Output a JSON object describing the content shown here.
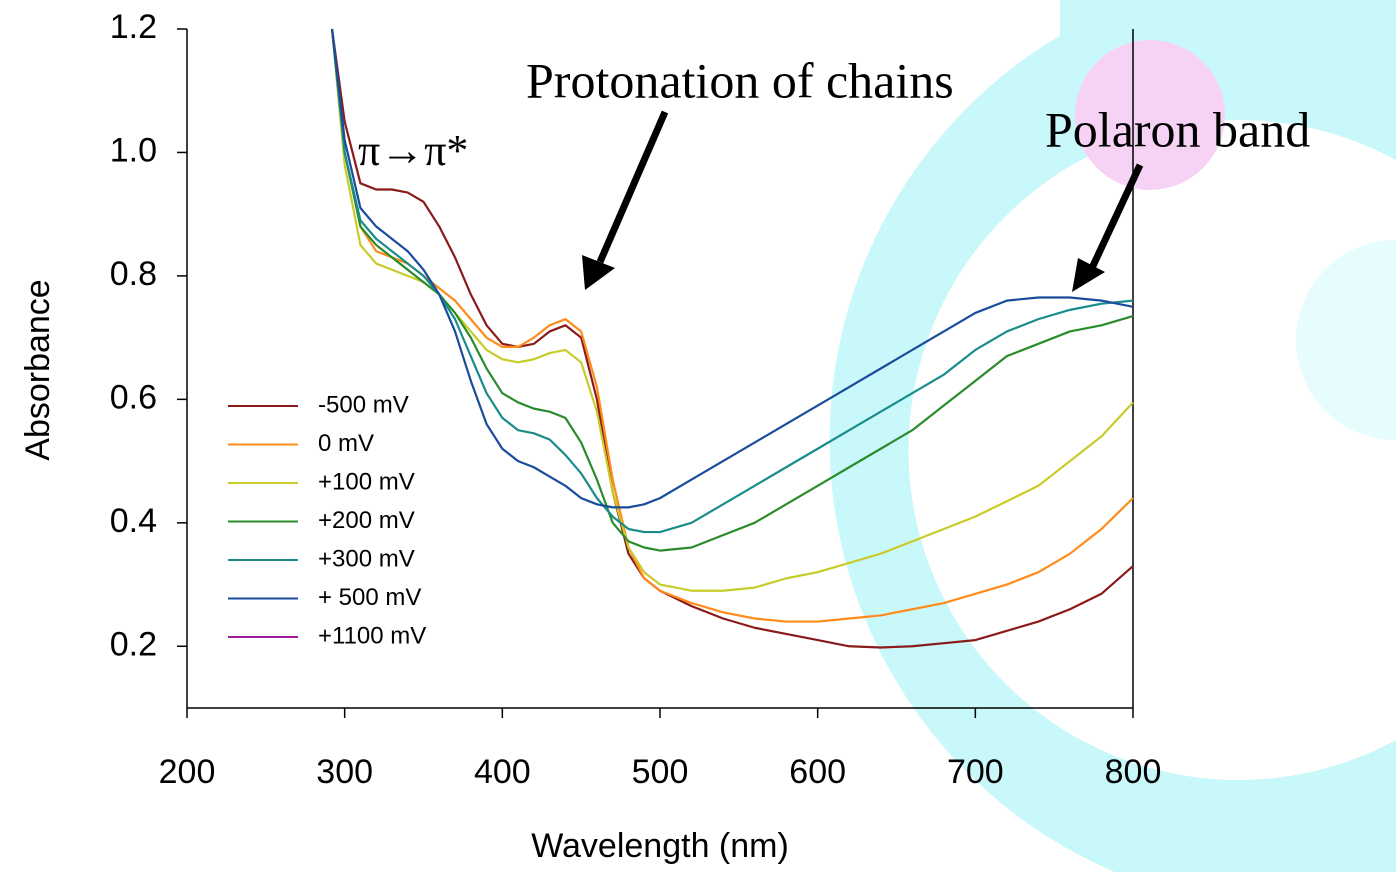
{
  "chart_data": {
    "type": "line",
    "xlabel": "Wavelength (nm)",
    "ylabel": "Absorbance",
    "annotations": [
      "π→π*",
      "Protonation of chains",
      "Polaron band"
    ],
    "x": [
      292,
      300,
      310,
      320,
      330,
      340,
      350,
      360,
      370,
      380,
      390,
      400,
      410,
      420,
      430,
      440,
      450,
      460,
      470,
      480,
      490,
      500,
      520,
      540,
      560,
      580,
      600,
      620,
      640,
      660,
      680,
      700,
      720,
      740,
      760,
      780,
      800
    ],
    "xlim": [
      200,
      800
    ],
    "xticks": [
      200,
      300,
      400,
      500,
      600,
      700,
      800
    ],
    "ylim": [
      0.1,
      1.2
    ],
    "yticks": [
      0.2,
      0.4,
      0.6,
      0.8,
      {
        "value": 1,
        "label": "1.0"
      },
      1.2
    ],
    "grid": false,
    "legend": "lower left",
    "series": [
      {
        "name": "-500 mV",
        "color": "#8b1a1a",
        "values": [
          1.2,
          1.05,
          0.95,
          0.94,
          0.94,
          0.935,
          0.92,
          0.88,
          0.83,
          0.77,
          0.72,
          0.69,
          0.685,
          0.69,
          0.71,
          0.72,
          0.7,
          0.6,
          0.45,
          0.35,
          0.31,
          0.29,
          0.265,
          0.245,
          0.23,
          0.22,
          0.21,
          0.2,
          0.198,
          0.2,
          0.205,
          0.21,
          0.225,
          0.24,
          0.26,
          0.285,
          0.33
        ]
      },
      {
        "name": "0 mV",
        "color": "#ff8c1a",
        "values": [
          1.2,
          1.0,
          0.88,
          0.84,
          0.83,
          0.82,
          0.8,
          0.78,
          0.76,
          0.73,
          0.7,
          0.685,
          0.685,
          0.7,
          0.72,
          0.73,
          0.71,
          0.62,
          0.47,
          0.36,
          0.31,
          0.29,
          0.27,
          0.255,
          0.245,
          0.24,
          0.24,
          0.245,
          0.25,
          0.26,
          0.27,
          0.285,
          0.3,
          0.32,
          0.35,
          0.39,
          0.44
        ]
      },
      {
        "name": "+100 mV",
        "color": "#c8cc2a",
        "values": [
          1.2,
          0.98,
          0.85,
          0.82,
          0.81,
          0.8,
          0.79,
          0.77,
          0.74,
          0.71,
          0.68,
          0.665,
          0.66,
          0.665,
          0.675,
          0.68,
          0.66,
          0.58,
          0.45,
          0.36,
          0.32,
          0.3,
          0.29,
          0.29,
          0.295,
          0.31,
          0.32,
          0.335,
          0.35,
          0.37,
          0.39,
          0.41,
          0.435,
          0.46,
          0.5,
          0.54,
          0.595
        ]
      },
      {
        "name": "+200 mV",
        "color": "#2a8c2a",
        "values": [
          1.2,
          1.0,
          0.88,
          0.85,
          0.83,
          0.81,
          0.79,
          0.77,
          0.74,
          0.7,
          0.65,
          0.61,
          0.595,
          0.585,
          0.58,
          0.57,
          0.53,
          0.47,
          0.4,
          0.37,
          0.36,
          0.355,
          0.36,
          0.38,
          0.4,
          0.43,
          0.46,
          0.49,
          0.52,
          0.55,
          0.59,
          0.63,
          0.67,
          0.69,
          0.71,
          0.72,
          0.735
        ]
      },
      {
        "name": "+300 mV",
        "color": "#1a8c8c",
        "values": [
          1.2,
          1.0,
          0.89,
          0.86,
          0.84,
          0.82,
          0.8,
          0.77,
          0.73,
          0.67,
          0.61,
          0.57,
          0.55,
          0.545,
          0.535,
          0.51,
          0.48,
          0.44,
          0.41,
          0.39,
          0.385,
          0.385,
          0.4,
          0.43,
          0.46,
          0.49,
          0.52,
          0.55,
          0.58,
          0.61,
          0.64,
          0.68,
          0.71,
          0.73,
          0.745,
          0.755,
          0.76
        ]
      },
      {
        "name": "+ 500 mV",
        "color": "#1a4c9c",
        "values": [
          1.2,
          1.02,
          0.91,
          0.88,
          0.86,
          0.84,
          0.81,
          0.77,
          0.71,
          0.63,
          0.56,
          0.52,
          0.5,
          0.49,
          0.475,
          0.46,
          0.44,
          0.43,
          0.425,
          0.425,
          0.43,
          0.44,
          0.47,
          0.5,
          0.53,
          0.56,
          0.59,
          0.62,
          0.65,
          0.68,
          0.71,
          0.74,
          0.76,
          0.765,
          0.765,
          0.76,
          0.75
        ]
      },
      {
        "name": "+1100 mV",
        "color": "#9c1a9c",
        "values": [
          null,
          null,
          null,
          null,
          null,
          null,
          null,
          null,
          null,
          null,
          null,
          null,
          null,
          null,
          null,
          null,
          null,
          null,
          null,
          null,
          null,
          null,
          null,
          null,
          null,
          null,
          null,
          null,
          null,
          null,
          null,
          null,
          null,
          null,
          null,
          null,
          null
        ]
      }
    ]
  }
}
